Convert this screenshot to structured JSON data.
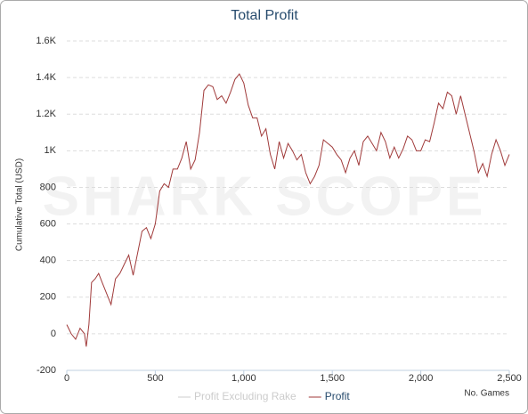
{
  "chart_data": {
    "type": "line",
    "title": "Total Profit",
    "watermark": "SHARK SCOPE",
    "xlabel": "No. Games",
    "ylabel": "Cumulative Total (USD)",
    "x": [
      0,
      25,
      50,
      75,
      100,
      110,
      125,
      140,
      160,
      180,
      200,
      225,
      250,
      275,
      300,
      325,
      350,
      375,
      400,
      425,
      450,
      475,
      500,
      525,
      550,
      575,
      600,
      625,
      650,
      675,
      700,
      725,
      750,
      775,
      800,
      825,
      850,
      875,
      900,
      925,
      950,
      975,
      1000,
      1025,
      1050,
      1075,
      1100,
      1125,
      1150,
      1175,
      1200,
      1225,
      1250,
      1275,
      1300,
      1325,
      1350,
      1375,
      1400,
      1425,
      1450,
      1475,
      1500,
      1525,
      1550,
      1575,
      1600,
      1625,
      1650,
      1675,
      1700,
      1725,
      1750,
      1775,
      1800,
      1825,
      1850,
      1875,
      1900,
      1925,
      1950,
      1975,
      2000,
      2025,
      2050,
      2075,
      2100,
      2125,
      2150,
      2175,
      2200,
      2225,
      2250,
      2275,
      2300,
      2325,
      2350,
      2375,
      2400,
      2425,
      2450,
      2475,
      2500
    ],
    "series": [
      {
        "name": "Profit Excluding Rake",
        "color": "#cccccc",
        "hidden": true
      },
      {
        "name": "Profit",
        "color": "#a03a3a",
        "values": [
          50,
          0,
          -30,
          30,
          0,
          -70,
          50,
          280,
          300,
          330,
          280,
          220,
          160,
          300,
          330,
          380,
          430,
          320,
          440,
          560,
          580,
          520,
          600,
          780,
          820,
          800,
          900,
          900,
          960,
          1050,
          900,
          950,
          1100,
          1330,
          1360,
          1350,
          1280,
          1300,
          1260,
          1320,
          1390,
          1420,
          1370,
          1250,
          1180,
          1180,
          1080,
          1120,
          980,
          900,
          1050,
          960,
          1040,
          1000,
          950,
          980,
          880,
          820,
          860,
          920,
          1060,
          1040,
          1020,
          980,
          950,
          880,
          960,
          1000,
          920,
          1050,
          1080,
          1040,
          1000,
          1100,
          1050,
          960,
          1020,
          960,
          1010,
          1080,
          1060,
          1000,
          1000,
          1060,
          1050,
          1150,
          1260,
          1230,
          1320,
          1300,
          1200,
          1300,
          1200,
          1100,
          1000,
          880,
          930,
          860,
          980,
          1060,
          1000,
          920,
          980
        ]
      }
    ],
    "xlim": [
      0,
      2500
    ],
    "xticks": [
      0,
      500,
      {
        "value": 1000,
        "label": "1,000"
      },
      {
        "value": 1500,
        "label": "1,500"
      },
      {
        "value": 2000,
        "label": "2,000"
      },
      {
        "value": 2500,
        "label": "2,500"
      }
    ],
    "ylim": [
      -200,
      1600
    ],
    "yticks": [
      -200,
      0,
      200,
      400,
      600,
      800,
      {
        "value": 1000,
        "label": "1K"
      },
      {
        "value": 1200,
        "label": "1.2K"
      },
      {
        "value": 1400,
        "label": "1.4K"
      },
      {
        "value": 1600,
        "label": "1.6K"
      }
    ],
    "grid": true
  }
}
